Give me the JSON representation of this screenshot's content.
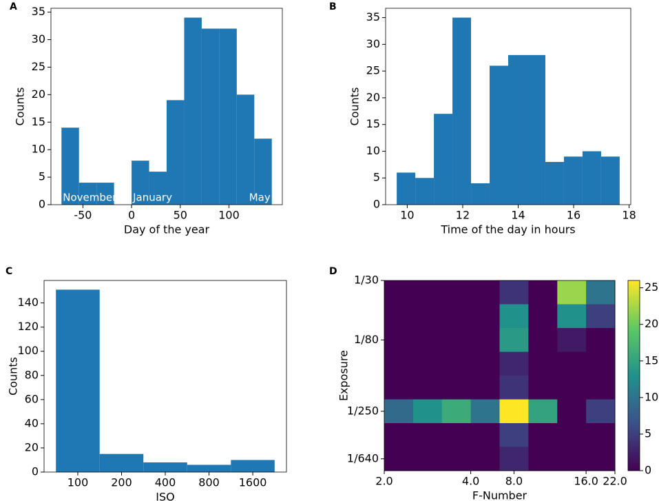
{
  "chart_data": [
    {
      "type": "histogram",
      "panel_label": "A",
      "xlabel": "Day of the year",
      "ylabel": "Counts",
      "bins": [
        -72,
        -54,
        -36,
        -18,
        0,
        18,
        36,
        54,
        72,
        90,
        108,
        126,
        144
      ],
      "counts": [
        14,
        4,
        4,
        0,
        8,
        6,
        19,
        34,
        32,
        32,
        20,
        12
      ],
      "color": "#1f77b4",
      "xlim": [
        -82.8,
        154.8
      ],
      "ylim": [
        0,
        35.7
      ],
      "xticks": [
        -50,
        0,
        50,
        100
      ],
      "yticks": [
        0,
        5,
        10,
        15,
        20,
        25,
        30,
        35
      ],
      "annotations": [
        "November",
        "January",
        "May"
      ]
    },
    {
      "type": "histogram",
      "panel_label": "B",
      "xlabel": "Time of the day in hours",
      "ylabel": "Counts",
      "bins": [
        9.62,
        10.29,
        10.96,
        11.63,
        12.3,
        12.97,
        13.64,
        14.31,
        14.98,
        15.65,
        16.32,
        16.99,
        17.66
      ],
      "counts": [
        6,
        5,
        17,
        35,
        4,
        26,
        28,
        28,
        8,
        9,
        10,
        9
      ],
      "color": "#1f77b4",
      "xlim": [
        9.22,
        18.06
      ],
      "ylim": [
        0,
        36.75
      ],
      "xticks": [
        10,
        12,
        14,
        16,
        18
      ],
      "yticks": [
        0,
        5,
        10,
        15,
        20,
        25,
        30,
        35
      ]
    },
    {
      "type": "histogram",
      "panel_label": "C",
      "xlabel": "ISO",
      "ylabel": "Counts",
      "xscale": "log",
      "bins": [
        70.7,
        141.4,
        282.8,
        565.7,
        1131.4,
        2262.7
      ],
      "counts": [
        151,
        15,
        8,
        6,
        10
      ],
      "color": "#1f77b4",
      "xlim": [
        58.6,
        2729
      ],
      "ylim": [
        0,
        158.6
      ],
      "xticks": [
        100,
        200,
        400,
        800,
        1600
      ],
      "yticks": [
        0,
        20,
        40,
        60,
        80,
        100,
        120,
        140
      ]
    },
    {
      "type": "heatmap",
      "panel_label": "D",
      "xlabel": "F-Number",
      "ylabel": "Exposure",
      "colormap": "viridis",
      "z": [
        [
          0,
          0,
          0,
          0,
          4,
          0,
          22,
          10
        ],
        [
          0,
          0,
          0,
          0,
          13,
          0,
          13,
          5
        ],
        [
          0,
          0,
          0,
          0,
          14,
          0,
          2,
          0
        ],
        [
          0,
          0,
          0,
          0,
          3,
          0,
          0,
          0
        ],
        [
          0,
          0,
          0,
          0,
          4,
          0,
          0,
          0
        ],
        [
          9,
          13,
          16,
          10,
          26,
          15,
          0,
          5
        ],
        [
          0,
          0,
          0,
          0,
          5,
          0,
          0,
          0
        ],
        [
          0,
          0,
          0,
          0,
          3,
          0,
          0,
          0
        ]
      ],
      "xlim": [
        0,
        8
      ],
      "ylim": [
        0,
        8
      ],
      "xticks": [
        {
          "value": 0,
          "label": "2.0"
        },
        {
          "value": 3,
          "label": "4.0"
        },
        {
          "value": 4.5,
          "label": "8.0"
        },
        {
          "value": 7,
          "label": "16.0"
        },
        {
          "value": 8,
          "label": "22.0"
        }
      ],
      "yticks": [
        {
          "value": 0,
          "label": "1/30"
        },
        {
          "value": 2.5,
          "label": "1/80"
        },
        {
          "value": 5.5,
          "label": "1/250"
        },
        {
          "value": 7.5,
          "label": "1/640"
        }
      ],
      "clim": [
        0,
        26
      ],
      "cticks": [
        0,
        5,
        10,
        15,
        20,
        25
      ]
    }
  ]
}
